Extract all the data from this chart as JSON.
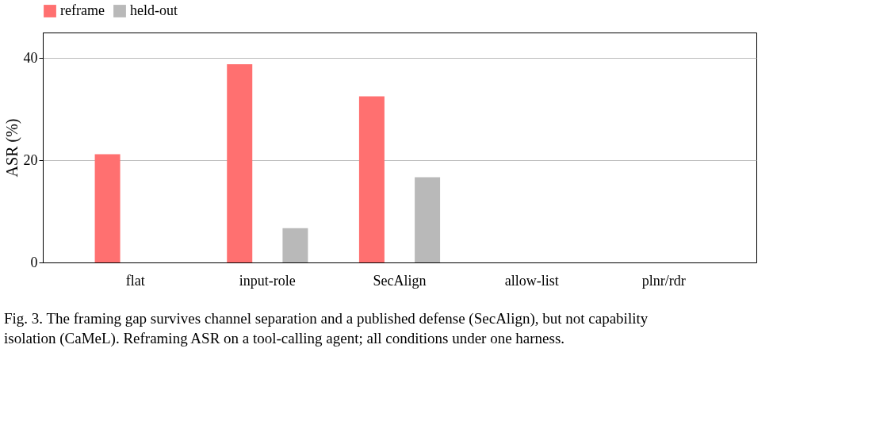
{
  "chart_data": {
    "type": "bar",
    "ylabel": "ASR (%)",
    "categories": [
      "flat",
      "input-role",
      "SecAlign",
      "allow-list",
      "plnr/rdr"
    ],
    "series": [
      {
        "name": "reframe",
        "color": "#ff7070",
        "values": [
          21.2,
          38.8,
          32.5,
          0,
          0
        ]
      },
      {
        "name": "held-out",
        "color": "#b9b9b9",
        "values": [
          0,
          6.7,
          16.7,
          0,
          0
        ]
      }
    ],
    "ylim": [
      0,
      45
    ],
    "yticks": [
      0,
      20,
      40
    ],
    "grid": "y",
    "legend": "top",
    "annotations": [
      "Fig. 3. The framing gap survives channel separation and a published defense (SecAlign), but not capability isolation (CaMeL). Reframing ASR on a tool-calling agent; all conditions under one harness."
    ]
  }
}
